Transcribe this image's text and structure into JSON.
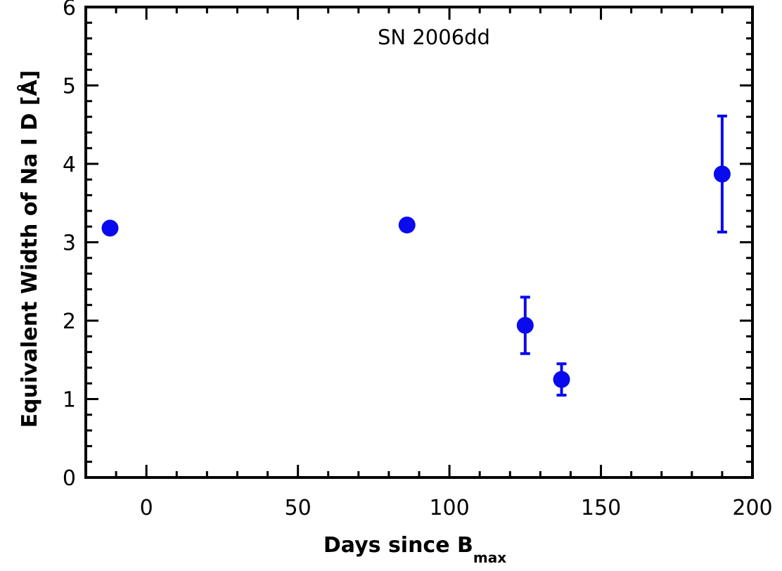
{
  "chart_data": {
    "type": "scatter",
    "title": "SN 2006dd",
    "xlabel": "Days since B",
    "xlabel_subscript": "max",
    "ylabel": "Equivalent Width of Na I D [Å]",
    "xlim": [
      -20,
      200
    ],
    "ylim": [
      0,
      6
    ],
    "x_ticks": [
      0,
      50,
      100,
      150,
      200
    ],
    "y_ticks": [
      0,
      1,
      2,
      3,
      4,
      5,
      6
    ],
    "x_minor_step": 10,
    "y_minor_step": 0.2,
    "grid": false,
    "marker_color": "#0a0aef",
    "series": [
      {
        "points": [
          {
            "x": -12,
            "y": 3.18,
            "err": 0
          },
          {
            "x": 86,
            "y": 3.22,
            "err": 0
          },
          {
            "x": 125,
            "y": 1.94,
            "err": 0.36
          },
          {
            "x": 137,
            "y": 1.25,
            "err": 0.2
          },
          {
            "x": 190,
            "y": 3.87,
            "err": 0.74
          }
        ]
      }
    ]
  }
}
